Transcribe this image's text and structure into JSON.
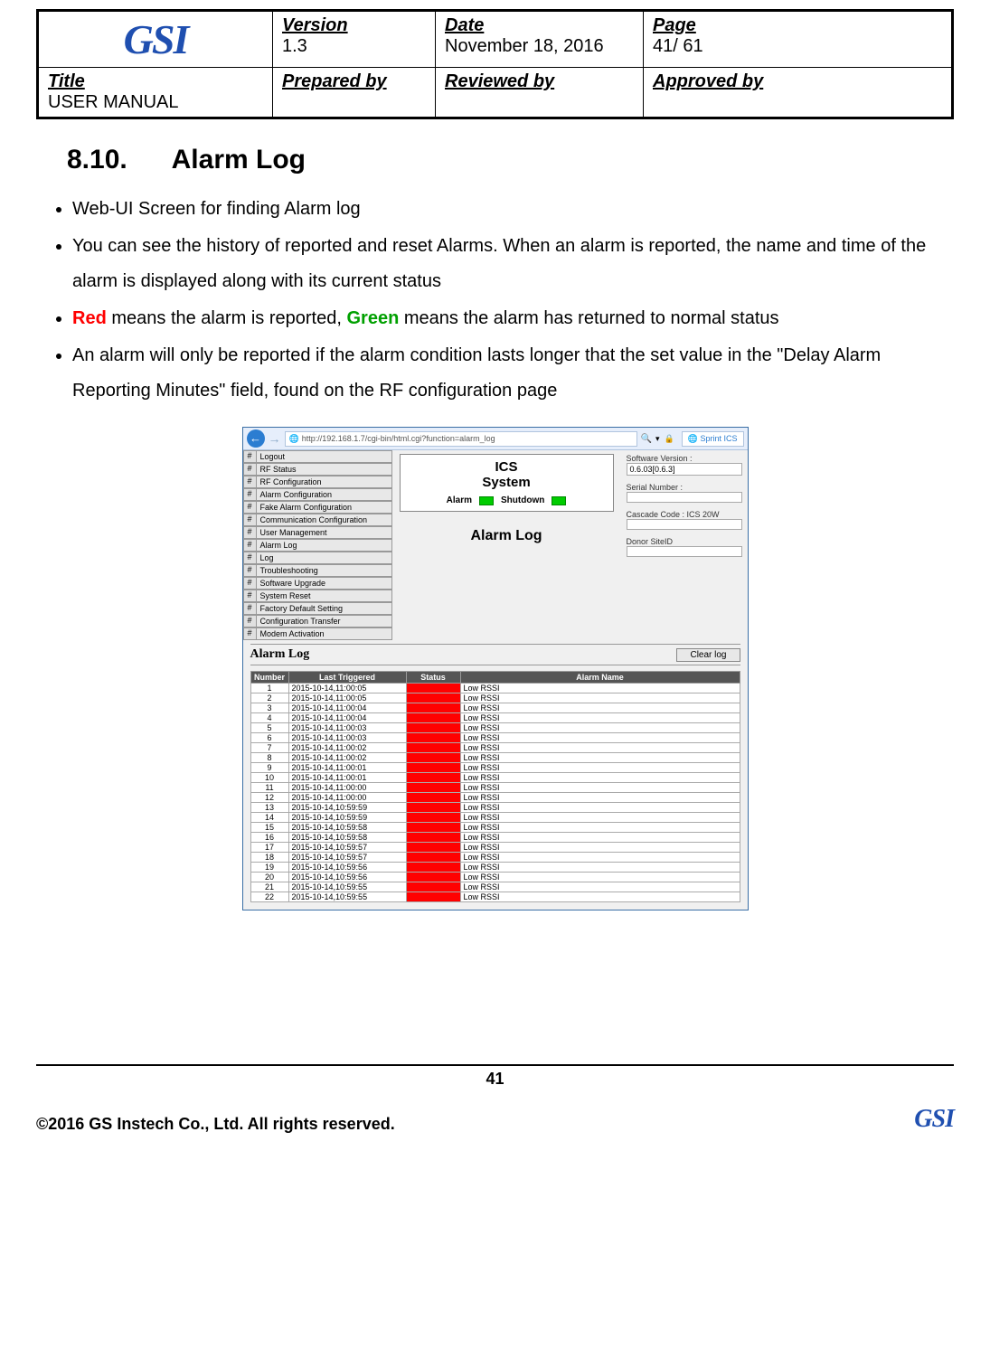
{
  "header": {
    "logo_text": "GSI",
    "version_label": "Version",
    "version": "1.3",
    "date_label": "Date",
    "date": "November 18, 2016",
    "page_label": "Page",
    "page": "41/ 61",
    "title_label": "Title",
    "title": "USER MANUAL",
    "prepared_label": "Prepared by",
    "reviewed_label": "Reviewed by",
    "approved_label": "Approved by"
  },
  "section": {
    "number": "8.10.",
    "title": "Alarm Log"
  },
  "bullets": {
    "b1": "Web-UI Screen for finding Alarm log",
    "b2": "You can see the history of reported and reset Alarms. When an alarm is reported, the name and time of the alarm is displayed along with its current status",
    "b3_red": "Red",
    "b3_mid": " means the alarm is reported, ",
    "b3_green": "Green",
    "b3_end": " means the alarm has returned to normal status",
    "b4": "An alarm will only be reported if the alarm condition lasts longer that the set value in the \"Delay Alarm Reporting Minutes\" field, found on the RF configuration page"
  },
  "browser": {
    "url": "http://192.168.1.7/cgi-bin/html.cgi?function=alarm_log",
    "search_icon": "🔍",
    "tab": "Sprint ICS"
  },
  "nav": {
    "items": [
      "Logout",
      "RF Status",
      "RF Configuration",
      "Alarm Configuration",
      "Fake Alarm Configuration",
      "Communication Configuration",
      "User Management",
      "Alarm Log",
      "Log",
      "Troubleshooting",
      "Software Upgrade",
      "System Reset",
      "Factory Default Setting",
      "Configuration Transfer",
      "Modem Activation"
    ]
  },
  "ics": {
    "line1": "ICS",
    "line2": "System",
    "alarm_lbl": "Alarm",
    "shutdown_lbl": "Shutdown",
    "page_title": "Alarm Log"
  },
  "info": {
    "sw_label": "Software Version :",
    "sw_val": "0.6.03[0.6.3]",
    "sn_label": "Serial Number :",
    "sn_val": "",
    "cascade_label": "Cascade Code : ICS 20W",
    "cascade_val": "",
    "donor_label": "Donor SiteID",
    "donor_val": ""
  },
  "log": {
    "heading": "Alarm Log",
    "clear_btn": "Clear log",
    "columns": [
      "Number",
      "Last Triggered",
      "Status",
      "Alarm Name"
    ],
    "status_color": "#ff0000",
    "rows": [
      {
        "n": "1",
        "t": "2015-10-14,11:00:05",
        "a": "Low RSSI"
      },
      {
        "n": "2",
        "t": "2015-10-14,11:00:05",
        "a": "Low RSSI"
      },
      {
        "n": "3",
        "t": "2015-10-14,11:00:04",
        "a": "Low RSSI"
      },
      {
        "n": "4",
        "t": "2015-10-14,11:00:04",
        "a": "Low RSSI"
      },
      {
        "n": "5",
        "t": "2015-10-14,11:00:03",
        "a": "Low RSSI"
      },
      {
        "n": "6",
        "t": "2015-10-14,11:00:03",
        "a": "Low RSSI"
      },
      {
        "n": "7",
        "t": "2015-10-14,11:00:02",
        "a": "Low RSSI"
      },
      {
        "n": "8",
        "t": "2015-10-14,11:00:02",
        "a": "Low RSSI"
      },
      {
        "n": "9",
        "t": "2015-10-14,11:00:01",
        "a": "Low RSSI"
      },
      {
        "n": "10",
        "t": "2015-10-14,11:00:01",
        "a": "Low RSSI"
      },
      {
        "n": "11",
        "t": "2015-10-14,11:00:00",
        "a": "Low RSSI"
      },
      {
        "n": "12",
        "t": "2015-10-14,11:00:00",
        "a": "Low RSSI"
      },
      {
        "n": "13",
        "t": "2015-10-14,10:59:59",
        "a": "Low RSSI"
      },
      {
        "n": "14",
        "t": "2015-10-14,10:59:59",
        "a": "Low RSSI"
      },
      {
        "n": "15",
        "t": "2015-10-14,10:59:58",
        "a": "Low RSSI"
      },
      {
        "n": "16",
        "t": "2015-10-14,10:59:58",
        "a": "Low RSSI"
      },
      {
        "n": "17",
        "t": "2015-10-14,10:59:57",
        "a": "Low RSSI"
      },
      {
        "n": "18",
        "t": "2015-10-14,10:59:57",
        "a": "Low RSSI"
      },
      {
        "n": "19",
        "t": "2015-10-14,10:59:56",
        "a": "Low RSSI"
      },
      {
        "n": "20",
        "t": "2015-10-14,10:59:56",
        "a": "Low RSSI"
      },
      {
        "n": "21",
        "t": "2015-10-14,10:59:55",
        "a": "Low RSSI"
      },
      {
        "n": "22",
        "t": "2015-10-14,10:59:55",
        "a": "Low RSSI"
      }
    ]
  },
  "footer": {
    "page_num": "41",
    "copyright": "©2016 GS Instech Co., Ltd.    All rights reserved.",
    "logo": "GSI"
  }
}
